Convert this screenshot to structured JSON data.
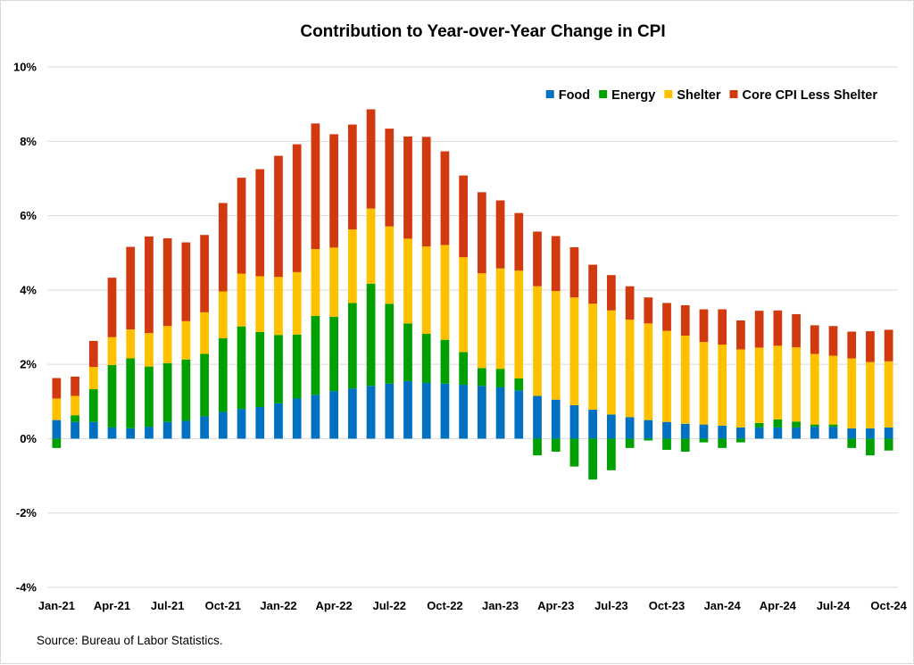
{
  "chart_data": {
    "type": "bar",
    "stacked": true,
    "title": "Contribution to Year-over-Year Change in CPI",
    "source": "Source: Bureau of Labor Statistics.",
    "ylim": [
      -4,
      10
    ],
    "y_ticks": [
      "-4%",
      "-2%",
      "0%",
      "2%",
      "4%",
      "6%",
      "8%",
      "10%"
    ],
    "y_tick_values": [
      -4,
      -2,
      0,
      2,
      4,
      6,
      8,
      10
    ],
    "x_tick_labels": [
      "Jan-21",
      "Apr-21",
      "Jul-21",
      "Oct-21",
      "Jan-22",
      "Apr-22",
      "Jul-22",
      "Oct-22",
      "Jan-23",
      "Apr-23",
      "Jul-23",
      "Oct-23",
      "Jan-24",
      "Apr-24",
      "Jul-24",
      "Oct-24"
    ],
    "grid": true,
    "legend_position": "top-right",
    "categories": [
      "Jan-21",
      "Feb-21",
      "Mar-21",
      "Apr-21",
      "May-21",
      "Jun-21",
      "Jul-21",
      "Aug-21",
      "Sep-21",
      "Oct-21",
      "Nov-21",
      "Dec-21",
      "Jan-22",
      "Feb-22",
      "Mar-22",
      "Apr-22",
      "May-22",
      "Jun-22",
      "Jul-22",
      "Aug-22",
      "Sep-22",
      "Oct-22",
      "Nov-22",
      "Dec-22",
      "Jan-23",
      "Feb-23",
      "Mar-23",
      "Apr-23",
      "May-23",
      "Jun-23",
      "Jul-23",
      "Aug-23",
      "Sep-23",
      "Oct-23",
      "Nov-23",
      "Dec-23",
      "Jan-24",
      "Feb-24",
      "Mar-24",
      "Apr-24",
      "May-24",
      "Jun-24",
      "Jul-24",
      "Aug-24",
      "Sep-24",
      "Oct-24"
    ],
    "series": [
      {
        "name": "Food",
        "color": "#0070C0",
        "values": [
          0.5,
          0.45,
          0.45,
          0.3,
          0.28,
          0.32,
          0.45,
          0.48,
          0.6,
          0.72,
          0.8,
          0.85,
          0.95,
          1.08,
          1.18,
          1.28,
          1.35,
          1.42,
          1.48,
          1.55,
          1.5,
          1.48,
          1.45,
          1.42,
          1.38,
          1.3,
          1.15,
          1.05,
          0.9,
          0.78,
          0.65,
          0.58,
          0.5,
          0.45,
          0.4,
          0.38,
          0.35,
          0.3,
          0.3,
          0.3,
          0.3,
          0.32,
          0.32,
          0.28,
          0.28,
          0.3
        ]
      },
      {
        "name": "Energy",
        "color": "#00A000",
        "values": [
          -0.25,
          0.18,
          0.88,
          1.68,
          1.88,
          1.62,
          1.58,
          1.65,
          1.68,
          1.98,
          2.22,
          2.02,
          1.84,
          1.72,
          2.12,
          2.0,
          2.3,
          2.75,
          2.15,
          1.55,
          1.32,
          1.18,
          0.88,
          0.48,
          0.5,
          0.32,
          -0.45,
          -0.35,
          -0.75,
          -1.1,
          -0.85,
          -0.25,
          -0.05,
          -0.3,
          -0.35,
          -0.1,
          -0.25,
          -0.1,
          0.12,
          0.22,
          0.16,
          0.06,
          0.06,
          -0.25,
          -0.45,
          -0.32
        ]
      },
      {
        "name": "Shelter",
        "color": "#FFC000",
        "values": [
          0.58,
          0.52,
          0.6,
          0.75,
          0.78,
          0.9,
          1.0,
          1.03,
          1.12,
          1.26,
          1.42,
          1.5,
          1.56,
          1.68,
          1.8,
          1.86,
          1.98,
          2.02,
          2.08,
          2.28,
          2.35,
          2.55,
          2.55,
          2.55,
          2.7,
          2.9,
          2.95,
          2.92,
          2.9,
          2.85,
          2.8,
          2.62,
          2.6,
          2.45,
          2.37,
          2.22,
          2.18,
          2.1,
          2.03,
          1.98,
          2.0,
          1.9,
          1.85,
          1.88,
          1.78,
          1.78
        ]
      },
      {
        "name": "Core CPI Less Shelter",
        "color": "#D13A0F",
        "values": [
          0.55,
          0.52,
          0.7,
          1.6,
          2.22,
          2.6,
          2.36,
          2.12,
          2.08,
          2.38,
          2.58,
          2.88,
          3.26,
          3.44,
          3.38,
          3.05,
          2.82,
          2.67,
          2.63,
          2.75,
          2.95,
          2.52,
          2.2,
          2.18,
          1.83,
          1.55,
          1.47,
          1.48,
          1.35,
          1.05,
          0.95,
          0.9,
          0.7,
          0.75,
          0.82,
          0.88,
          0.95,
          0.78,
          0.99,
          0.95,
          0.89,
          0.77,
          0.8,
          0.72,
          0.83,
          0.85
        ]
      }
    ]
  }
}
